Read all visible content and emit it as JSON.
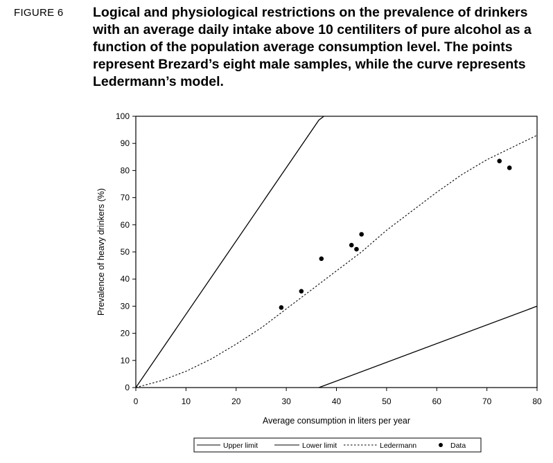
{
  "figure_label": "FIGURE 6",
  "caption": "Logical and physiological restrictions on the prevalence of drinkers with an average daily intake above 10 centiliters of pure alcohol as a function of the population average consumption level. The points represent Brezard’s eight male samples, while the curve represents Ledermann’s model.",
  "chart_data": {
    "type": "line",
    "xlabel": "Average consumption in liters per year",
    "ylabel": "Prevalence of heavy drinkers (%)",
    "xlim": [
      0,
      80
    ],
    "ylim": [
      0,
      100
    ],
    "x_ticks": [
      0,
      10,
      20,
      30,
      40,
      50,
      60,
      70,
      80
    ],
    "y_ticks": [
      0,
      10,
      20,
      30,
      40,
      50,
      60,
      70,
      80,
      90,
      100
    ],
    "grid": false,
    "legend_position": "bottom",
    "series": [
      {
        "name": "Upper limit",
        "style": "solid",
        "x": [
          0,
          36.5,
          37.5
        ],
        "y": [
          0,
          98.6,
          100
        ]
      },
      {
        "name": "Lower limit",
        "style": "solid",
        "x": [
          36.5,
          80
        ],
        "y": [
          0,
          30
        ]
      },
      {
        "name": "Ledermann",
        "style": "dotted",
        "x": [
          0,
          5,
          10,
          15,
          20,
          25,
          30,
          35,
          40,
          45,
          50,
          55,
          60,
          65,
          70,
          75,
          80
        ],
        "y": [
          0,
          2.5,
          6,
          10.5,
          16,
          22,
          29,
          36,
          43,
          50,
          58,
          65,
          72,
          78.5,
          84,
          88.5,
          93
        ]
      },
      {
        "name": "Data",
        "style": "points",
        "x": [
          29,
          33,
          37,
          43,
          44,
          45,
          72.5,
          74.5
        ],
        "y": [
          29.5,
          35.5,
          47.5,
          52.5,
          51,
          56.5,
          83.5,
          81
        ]
      }
    ]
  }
}
